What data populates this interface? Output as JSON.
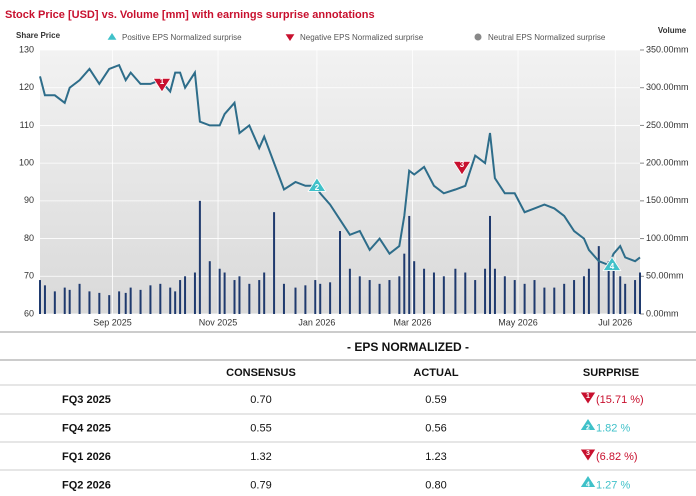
{
  "chart_data": {
    "type": "line",
    "title": "Stock Price [USD] vs. Volume [mm] with earnings surprise annotations",
    "ylabel": "Share Price",
    "y2label": "Volume",
    "x": [
      0,
      3,
      9,
      15,
      18,
      24,
      30,
      36,
      42,
      48,
      52,
      55,
      61,
      67,
      73,
      79,
      82,
      85,
      88,
      94,
      97,
      103,
      109,
      112,
      118,
      121,
      127,
      133,
      136,
      142,
      148,
      155,
      161,
      167,
      170,
      176,
      182,
      188,
      194,
      200,
      206,
      212,
      218,
      221,
      224,
      227,
      233,
      239,
      245,
      252,
      258,
      264,
      270,
      273,
      276,
      282,
      288,
      294,
      300,
      306,
      312,
      318,
      324,
      330,
      333,
      339,
      345,
      348,
      352,
      355,
      361,
      364
    ],
    "xlim": [
      0,
      364
    ],
    "xticks": [
      {
        "value": 44,
        "label": "Sep 2025"
      },
      {
        "value": 108,
        "label": "Nov 2025"
      },
      {
        "value": 168,
        "label": "Jan 2026"
      },
      {
        "value": 226,
        "label": "Mar 2026"
      },
      {
        "value": 290,
        "label": "May 2026"
      },
      {
        "value": 349,
        "label": "Jul 2026"
      }
    ],
    "ylim": [
      60,
      130
    ],
    "yticks": [
      60,
      70,
      80,
      90,
      100,
      110,
      120,
      130
    ],
    "y2lim": [
      0,
      350
    ],
    "y2ticks": [
      {
        "value": 0,
        "label": "0.00mm"
      },
      {
        "value": 50,
        "label": "50.00mm"
      },
      {
        "value": 100,
        "label": "100.00mm"
      },
      {
        "value": 150,
        "label": "150.00mm"
      },
      {
        "value": 200,
        "label": "200.00mm"
      },
      {
        "value": 250,
        "label": "250.00mm"
      },
      {
        "value": 300,
        "label": "300.00mm"
      },
      {
        "value": 350,
        "label": "350.00mm"
      }
    ],
    "grid": true,
    "series": [
      {
        "type": "line",
        "color": "#2e6d8a",
        "values": [
          123,
          118,
          118,
          116,
          120,
          122,
          125,
          121,
          125,
          126,
          122,
          124,
          121,
          121,
          122,
          119,
          124,
          124,
          120,
          124,
          111,
          110,
          110,
          113,
          116,
          108,
          110,
          104,
          107,
          100,
          93,
          95,
          94,
          94,
          92,
          89,
          85,
          81,
          82,
          77,
          80,
          76,
          78,
          86,
          98,
          97,
          99,
          94,
          92,
          93,
          94,
          102,
          100,
          108,
          96,
          92,
          92,
          87,
          88,
          89,
          88,
          86,
          82,
          80,
          77,
          74,
          73,
          76,
          78,
          75,
          74,
          75
        ]
      },
      {
        "type": "bar",
        "color": "#1f3a6e",
        "axis": "y2",
        "values": [
          45,
          38,
          30,
          35,
          32,
          40,
          30,
          28,
          25,
          30,
          28,
          35,
          32,
          38,
          40,
          35,
          30,
          45,
          50,
          55,
          150,
          70,
          60,
          55,
          45,
          50,
          40,
          45,
          55,
          135,
          40,
          35,
          38,
          45,
          40,
          42,
          110,
          60,
          50,
          45,
          40,
          45,
          50,
          80,
          130,
          70,
          60,
          55,
          50,
          60,
          55,
          45,
          60,
          130,
          60,
          50,
          45,
          40,
          45,
          35,
          35,
          40,
          45,
          50,
          60,
          90,
          70,
          65,
          50,
          40,
          45,
          55
        ]
      }
    ],
    "legend": [
      {
        "label": "Positive EPS Normalized surprise",
        "color": "#3fc1c9",
        "shape": "up"
      },
      {
        "label": "Negative EPS Normalized surprise",
        "color": "#c8102e",
        "shape": "down"
      },
      {
        "label": "Neutral EPS Normalized surprise",
        "color": "#888888",
        "shape": "circle"
      }
    ],
    "annotations": [
      {
        "label": "1",
        "x": 74,
        "y": 121,
        "kind": 1
      },
      {
        "label": "2",
        "x": 168,
        "y": 94,
        "kind": 0
      },
      {
        "label": "3",
        "x": 256,
        "y": 99,
        "kind": 1
      },
      {
        "label": "4",
        "x": 347,
        "y": 73,
        "kind": 0
      }
    ]
  },
  "table": {
    "title": "- EPS NORMALIZED -",
    "headers": [
      "CONSENSUS",
      "ACTUAL",
      "SURPRISE"
    ],
    "rows": [
      {
        "period": "FQ3 2025",
        "consensus": "0.70",
        "actual": "0.59",
        "marker": "1",
        "kind": 1,
        "surprise": "(15.71 %)"
      },
      {
        "period": "FQ4 2025",
        "consensus": "0.55",
        "actual": "0.56",
        "marker": "2",
        "kind": 0,
        "surprise": "1.82 %"
      },
      {
        "period": "FQ1 2026",
        "consensus": "1.32",
        "actual": "1.23",
        "marker": "3",
        "kind": 1,
        "surprise": "(6.82 %)"
      },
      {
        "period": "FQ2 2026",
        "consensus": "0.79",
        "actual": "0.80",
        "marker": "4",
        "kind": 0,
        "surprise": "1.27 %"
      }
    ]
  }
}
